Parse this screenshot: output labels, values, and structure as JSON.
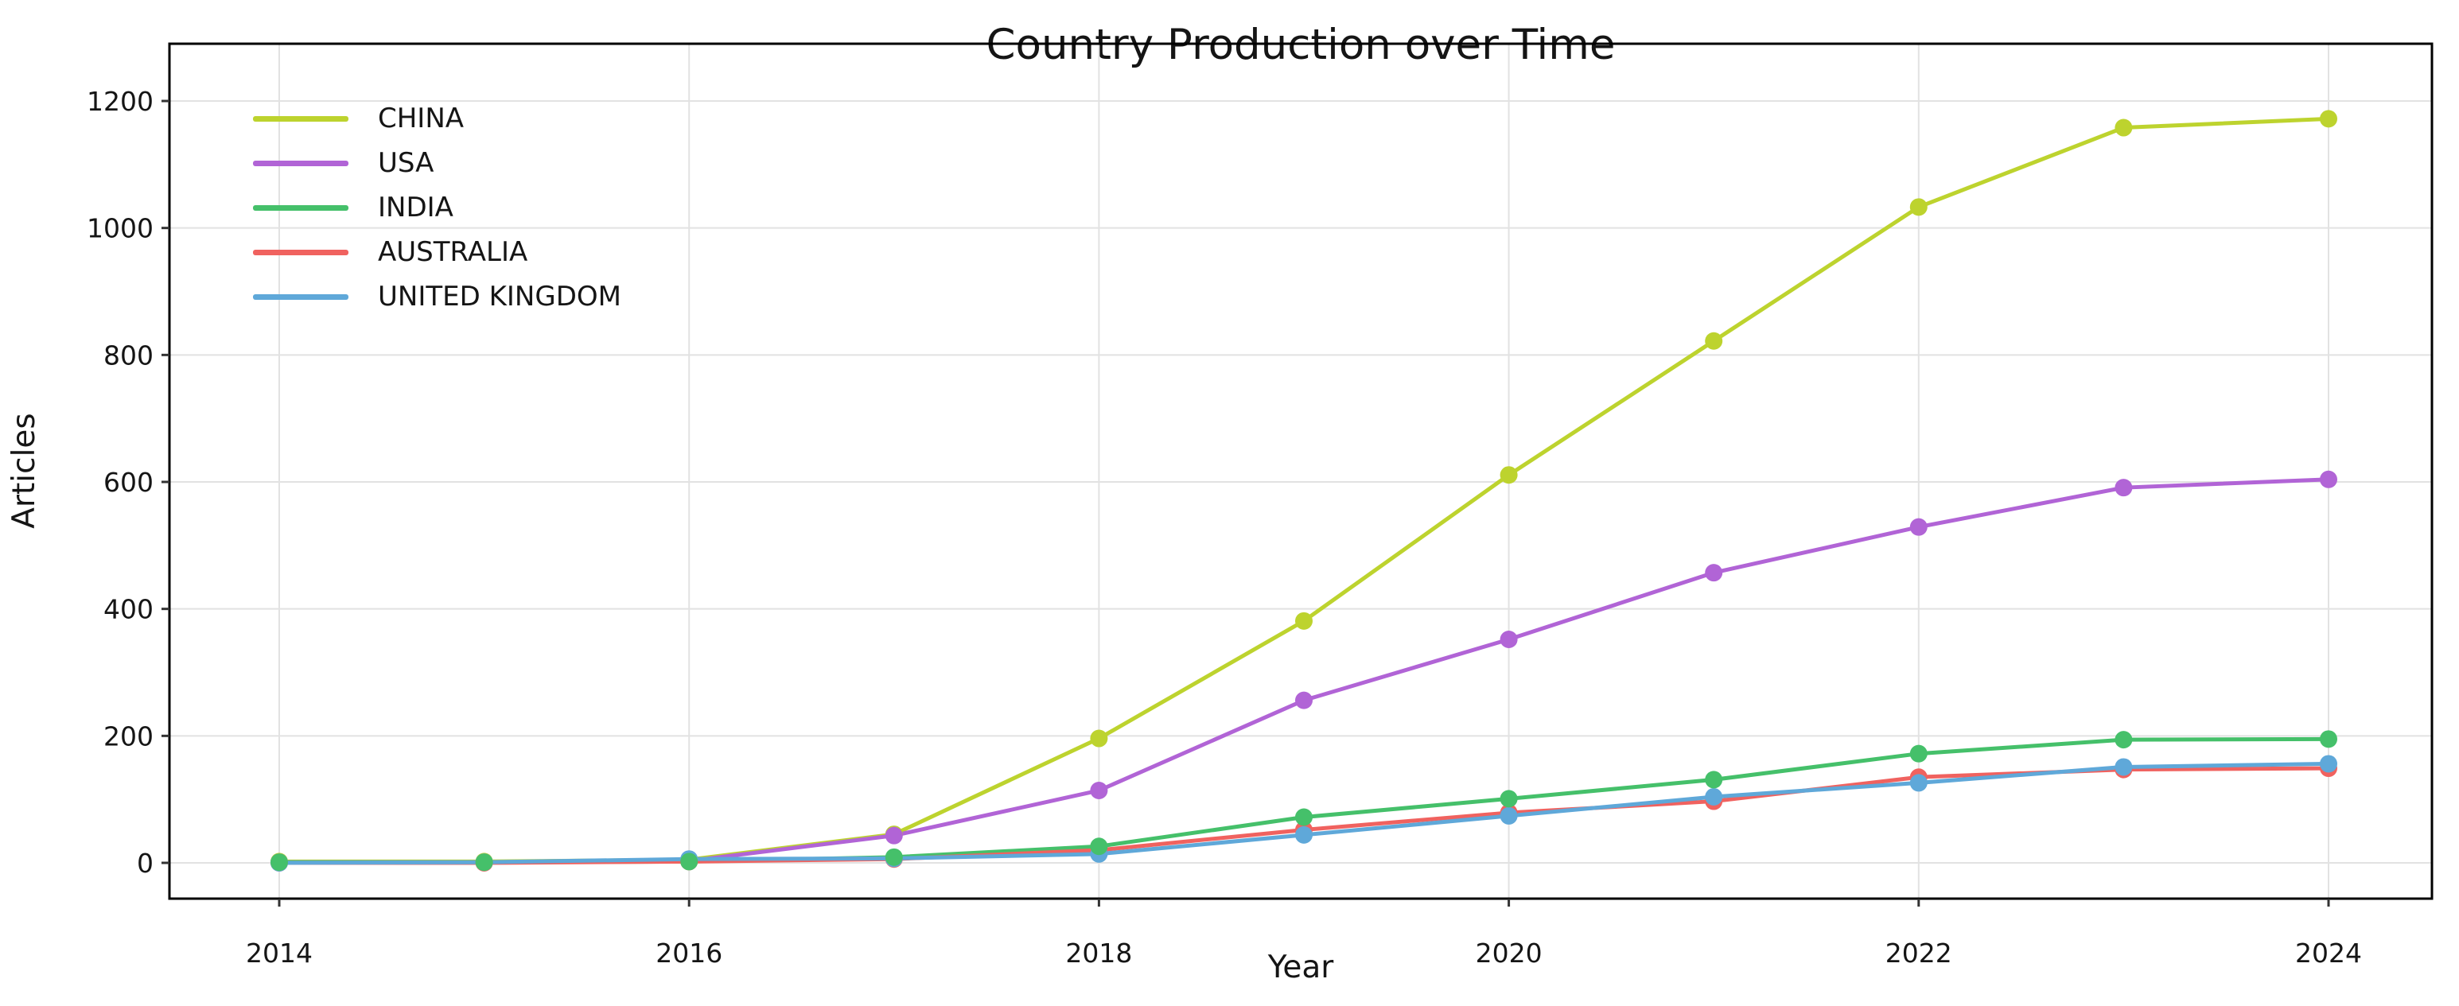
{
  "title": "Country Production over Time",
  "chart_data": {
    "type": "line",
    "title": "Country Production over Time",
    "xlabel": "Year",
    "ylabel": "Articles",
    "x": [
      2014,
      2015,
      2016,
      2017,
      2018,
      2019,
      2020,
      2021,
      2022,
      2023,
      2024
    ],
    "xticks": [
      2014,
      2016,
      2018,
      2020,
      2022,
      2024
    ],
    "yticks": [
      0,
      200,
      400,
      600,
      800,
      1000,
      1200
    ],
    "xlim": [
      2013.45,
      2024.5
    ],
    "ylim": [
      0,
      1200
    ],
    "grid": true,
    "legend_position": "upper-left",
    "marker_style": "filled-circle",
    "series": [
      {
        "name": "CHINA",
        "color": "#bdd32e",
        "values": [
          2,
          2,
          5,
          45,
          196,
          381,
          611,
          822,
          1033,
          1158,
          1172
        ]
      },
      {
        "name": "USA",
        "color": "#b164d6",
        "values": [
          1,
          1,
          3,
          43,
          114,
          256,
          352,
          457,
          529,
          591,
          604
        ]
      },
      {
        "name": "INDIA",
        "color": "#45c06a",
        "values": [
          1,
          1,
          2,
          9,
          26,
          72,
          101,
          131,
          172,
          194,
          195
        ]
      },
      {
        "name": "AUSTRALIA",
        "color": "#f0625f",
        "values": [
          0,
          0,
          2,
          6,
          20,
          52,
          79,
          97,
          135,
          147,
          149
        ]
      },
      {
        "name": "UNITED KINGDOM",
        "color": "#5fa8d9",
        "values": [
          0,
          1,
          6,
          7,
          14,
          44,
          74,
          104,
          126,
          151,
          156
        ]
      }
    ]
  },
  "colors": {
    "grid": "#e2e2e2",
    "spine": "#000000",
    "tick": "#333333",
    "text": "#151515",
    "background": "#ffffff"
  }
}
